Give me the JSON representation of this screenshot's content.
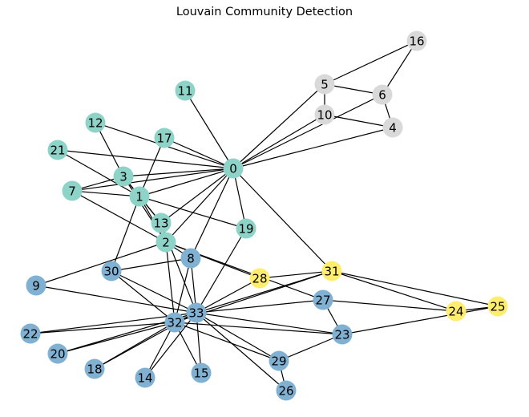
{
  "title": "Louvain Community Detection",
  "communities": {
    "teal": "#8dd3c7",
    "gray": "#d9d9d9",
    "blue": "#80b1d3",
    "yellow": "#ffed6f"
  },
  "nodes": [
    {
      "id": "0",
      "label": "0",
      "community": "teal"
    },
    {
      "id": "1",
      "label": "1",
      "community": "teal"
    },
    {
      "id": "2",
      "label": "2",
      "community": "teal"
    },
    {
      "id": "3",
      "label": "3",
      "community": "teal"
    },
    {
      "id": "4",
      "label": "4",
      "community": "gray"
    },
    {
      "id": "5",
      "label": "5",
      "community": "gray"
    },
    {
      "id": "6",
      "label": "6",
      "community": "gray"
    },
    {
      "id": "7",
      "label": "7",
      "community": "teal"
    },
    {
      "id": "8",
      "label": "8",
      "community": "blue"
    },
    {
      "id": "9",
      "label": "9",
      "community": "blue"
    },
    {
      "id": "10",
      "label": "10",
      "community": "gray"
    },
    {
      "id": "11",
      "label": "11",
      "community": "teal"
    },
    {
      "id": "12",
      "label": "12",
      "community": "teal"
    },
    {
      "id": "13",
      "label": "13",
      "community": "teal"
    },
    {
      "id": "14",
      "label": "14",
      "community": "blue"
    },
    {
      "id": "15",
      "label": "15",
      "community": "blue"
    },
    {
      "id": "16",
      "label": "16",
      "community": "gray"
    },
    {
      "id": "17",
      "label": "17",
      "community": "teal"
    },
    {
      "id": "18",
      "label": "18",
      "community": "blue"
    },
    {
      "id": "19",
      "label": "19",
      "community": "teal"
    },
    {
      "id": "20",
      "label": "20",
      "community": "blue"
    },
    {
      "id": "21",
      "label": "21",
      "community": "teal"
    },
    {
      "id": "22",
      "label": "22",
      "community": "blue"
    },
    {
      "id": "23",
      "label": "23",
      "community": "blue"
    },
    {
      "id": "24",
      "label": "24",
      "community": "yellow"
    },
    {
      "id": "25",
      "label": "25",
      "community": "yellow"
    },
    {
      "id": "26",
      "label": "26",
      "community": "blue"
    },
    {
      "id": "27",
      "label": "27",
      "community": "blue"
    },
    {
      "id": "28",
      "label": "28",
      "community": "yellow"
    },
    {
      "id": "29",
      "label": "29",
      "community": "blue"
    },
    {
      "id": "30",
      "label": "30",
      "community": "blue"
    },
    {
      "id": "31",
      "label": "31",
      "community": "yellow"
    },
    {
      "id": "32",
      "label": "32",
      "community": "blue"
    },
    {
      "id": "33",
      "label": "33",
      "community": "blue"
    }
  ],
  "edges": [
    [
      "0",
      "1"
    ],
    [
      "0",
      "2"
    ],
    [
      "0",
      "3"
    ],
    [
      "0",
      "4"
    ],
    [
      "0",
      "5"
    ],
    [
      "0",
      "6"
    ],
    [
      "0",
      "7"
    ],
    [
      "0",
      "8"
    ],
    [
      "0",
      "10"
    ],
    [
      "0",
      "11"
    ],
    [
      "0",
      "12"
    ],
    [
      "0",
      "13"
    ],
    [
      "0",
      "17"
    ],
    [
      "0",
      "19"
    ],
    [
      "0",
      "21"
    ],
    [
      "0",
      "31"
    ],
    [
      "1",
      "2"
    ],
    [
      "1",
      "3"
    ],
    [
      "1",
      "7"
    ],
    [
      "1",
      "13"
    ],
    [
      "1",
      "17"
    ],
    [
      "1",
      "19"
    ],
    [
      "1",
      "21"
    ],
    [
      "1",
      "30"
    ],
    [
      "2",
      "3"
    ],
    [
      "2",
      "7"
    ],
    [
      "2",
      "8"
    ],
    [
      "2",
      "9"
    ],
    [
      "2",
      "13"
    ],
    [
      "2",
      "27"
    ],
    [
      "2",
      "28"
    ],
    [
      "2",
      "32"
    ],
    [
      "3",
      "7"
    ],
    [
      "3",
      "12"
    ],
    [
      "3",
      "13"
    ],
    [
      "4",
      "6"
    ],
    [
      "4",
      "10"
    ],
    [
      "5",
      "6"
    ],
    [
      "5",
      "10"
    ],
    [
      "5",
      "16"
    ],
    [
      "6",
      "16"
    ],
    [
      "8",
      "30"
    ],
    [
      "8",
      "32"
    ],
    [
      "8",
      "33"
    ],
    [
      "9",
      "33"
    ],
    [
      "13",
      "33"
    ],
    [
      "14",
      "32"
    ],
    [
      "14",
      "33"
    ],
    [
      "15",
      "32"
    ],
    [
      "15",
      "33"
    ],
    [
      "18",
      "32"
    ],
    [
      "18",
      "33"
    ],
    [
      "19",
      "33"
    ],
    [
      "20",
      "32"
    ],
    [
      "20",
      "33"
    ],
    [
      "22",
      "32"
    ],
    [
      "22",
      "33"
    ],
    [
      "23",
      "25"
    ],
    [
      "23",
      "27"
    ],
    [
      "23",
      "29"
    ],
    [
      "23",
      "32"
    ],
    [
      "23",
      "33"
    ],
    [
      "24",
      "25"
    ],
    [
      "24",
      "27"
    ],
    [
      "24",
      "31"
    ],
    [
      "25",
      "31"
    ],
    [
      "26",
      "29"
    ],
    [
      "26",
      "33"
    ],
    [
      "27",
      "33"
    ],
    [
      "28",
      "31"
    ],
    [
      "28",
      "33"
    ],
    [
      "29",
      "32"
    ],
    [
      "29",
      "33"
    ],
    [
      "30",
      "32"
    ],
    [
      "30",
      "33"
    ],
    [
      "31",
      "32"
    ],
    [
      "31",
      "33"
    ],
    [
      "32",
      "33"
    ]
  ]
}
